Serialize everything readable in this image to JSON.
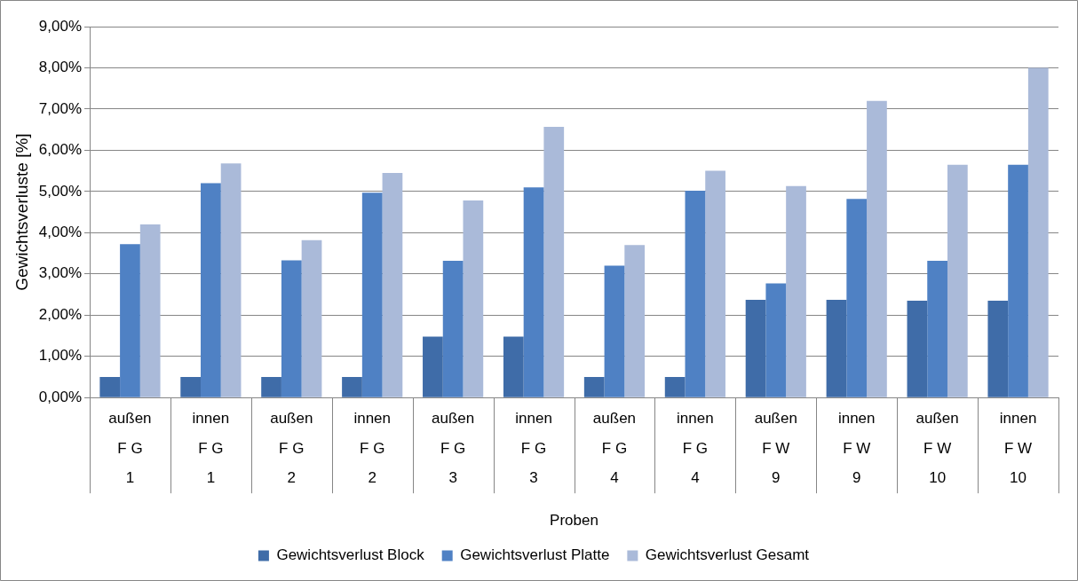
{
  "chart_data": {
    "type": "bar",
    "xlabel": "Proben",
    "ylabel": "Gewichtsverluste [%]",
    "categories": [
      "außen\nF G\n1",
      "innen\nF G\n1",
      "außen\nF G\n2",
      "innen\nF G\n2",
      "außen\nF G\n3",
      "innen\nF G\n3",
      "außen\nF G\n4",
      "innen\nF G\n4",
      "außen\nF W\n9",
      "innen\nF W\n9",
      "außen\nF W\n10",
      "innen\nF W\n10"
    ],
    "series": [
      {
        "name": "Gewichtsverlust Block",
        "color": "#3f6ca8",
        "values": [
          0.5,
          0.5,
          0.5,
          0.5,
          1.48,
          1.48,
          0.5,
          0.5,
          2.37,
          2.37,
          2.35,
          2.35
        ]
      },
      {
        "name": "Gewichtsverlust Platte",
        "color": "#4f81c4",
        "values": [
          3.72,
          5.2,
          3.33,
          4.97,
          3.32,
          5.1,
          3.2,
          5.02,
          2.77,
          4.82,
          3.32,
          5.65
        ]
      },
      {
        "name": "Gewichtsverlust Gesamt",
        "color": "#aabad9",
        "values": [
          4.2,
          5.68,
          3.82,
          5.45,
          4.78,
          6.57,
          3.7,
          5.5,
          5.13,
          7.2,
          5.65,
          8.0
        ]
      }
    ],
    "ylim": [
      0,
      9
    ],
    "yticks": [
      {
        "value": 0,
        "label": "0,00%"
      },
      {
        "value": 1,
        "label": "1,00%"
      },
      {
        "value": 2,
        "label": "2,00%"
      },
      {
        "value": 3,
        "label": "3,00%"
      },
      {
        "value": 4,
        "label": "4,00%"
      },
      {
        "value": 5,
        "label": "5,00%"
      },
      {
        "value": 6,
        "label": "6,00%"
      },
      {
        "value": 7,
        "label": "7,00%"
      },
      {
        "value": 8,
        "label": "8,00%"
      },
      {
        "value": 9,
        "label": "9,00%"
      }
    ],
    "grid": "y",
    "legend": "bottom"
  }
}
